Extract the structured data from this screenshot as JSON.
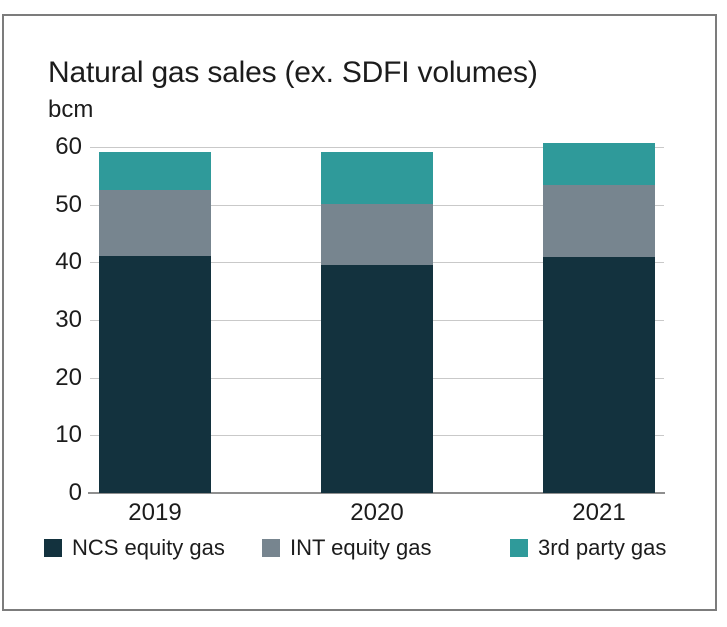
{
  "frame": {
    "background": "#ffffff",
    "border_color": "#7c7c7c"
  },
  "palette": {
    "text": "#1c1c1c",
    "gridline": "#c9c9c9",
    "axis_line": "#8f8f8f"
  },
  "chart_data": {
    "type": "bar",
    "stacked": true,
    "title": "Natural gas sales (ex. SDFI volumes)",
    "unit_label": "bcm",
    "categories": [
      "2019",
      "2020",
      "2021"
    ],
    "series": [
      {
        "name": "NCS equity gas",
        "color": "#13323e",
        "values": [
          41.1,
          39.6,
          41.0
        ]
      },
      {
        "name": "INT equity gas",
        "color": "#77858f",
        "values": [
          11.4,
          10.5,
          12.4
        ]
      },
      {
        "name": "3rd party gas",
        "color": "#2f9a9a",
        "values": [
          6.7,
          9.1,
          7.3
        ]
      }
    ],
    "totals": [
      59.2,
      59.2,
      60.7
    ],
    "ylim": [
      0,
      60
    ],
    "ytick_interval": 10,
    "yticks": [
      0,
      10,
      20,
      30,
      40,
      50,
      60
    ],
    "grid": true,
    "legend_position": "bottom"
  }
}
